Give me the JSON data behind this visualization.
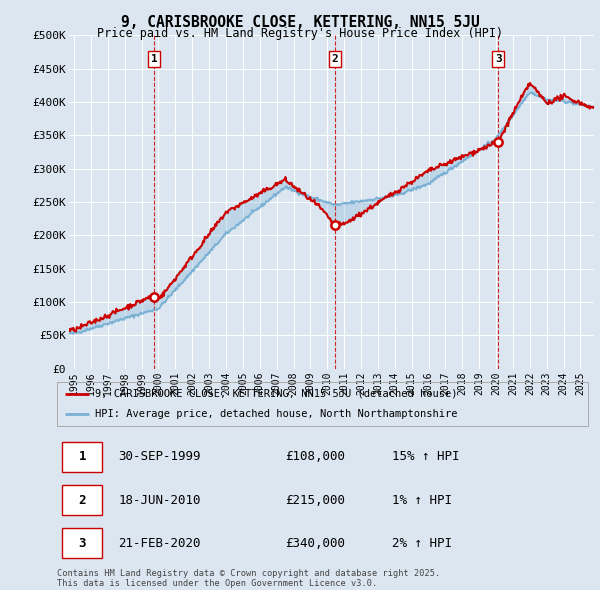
{
  "title": "9, CARISBROOKE CLOSE, KETTERING, NN15 5JU",
  "subtitle": "Price paid vs. HM Land Registry's House Price Index (HPI)",
  "background_color": "#dce6f1",
  "plot_bg_color": "#dce6f1",
  "hpi_line_color": "#7ab0d4",
  "price_line_color": "#cc0000",
  "sale_marker_color": "#cc0000",
  "vline_color": "#cc0000",
  "ylabel_ticks": [
    "£0",
    "£50K",
    "£100K",
    "£150K",
    "£200K",
    "£250K",
    "£300K",
    "£350K",
    "£400K",
    "£450K",
    "£500K"
  ],
  "ytick_values": [
    0,
    50000,
    100000,
    150000,
    200000,
    250000,
    300000,
    350000,
    400000,
    450000,
    500000
  ],
  "xlim_start": 1994.7,
  "xlim_end": 2025.8,
  "ylim_min": 0,
  "ylim_max": 500000,
  "sale_dates": [
    1999.75,
    2010.46,
    2020.13
  ],
  "sale_prices": [
    108000,
    215000,
    340000
  ],
  "sale_labels": [
    "1",
    "2",
    "3"
  ],
  "sale_annotations": [
    {
      "label": "1",
      "date": "30-SEP-1999",
      "price": "£108,000",
      "hpi_pct": "15% ↑ HPI"
    },
    {
      "label": "2",
      "date": "18-JUN-2010",
      "price": "£215,000",
      "hpi_pct": "1% ↑ HPI"
    },
    {
      "label": "3",
      "date": "21-FEB-2020",
      "price": "£340,000",
      "hpi_pct": "2% ↑ HPI"
    }
  ],
  "legend_line1": "9, CARISBROOKE CLOSE, KETTERING, NN15 5JU (detached house)",
  "legend_line2": "HPI: Average price, detached house, North Northamptonshire",
  "footer": "Contains HM Land Registry data © Crown copyright and database right 2025.\nThis data is licensed under the Open Government Licence v3.0.",
  "xtick_years": [
    1995,
    1996,
    1997,
    1998,
    1999,
    2000,
    2001,
    2002,
    2003,
    2004,
    2005,
    2006,
    2007,
    2008,
    2009,
    2010,
    2011,
    2012,
    2013,
    2014,
    2015,
    2016,
    2017,
    2018,
    2019,
    2020,
    2021,
    2022,
    2023,
    2024,
    2025
  ]
}
